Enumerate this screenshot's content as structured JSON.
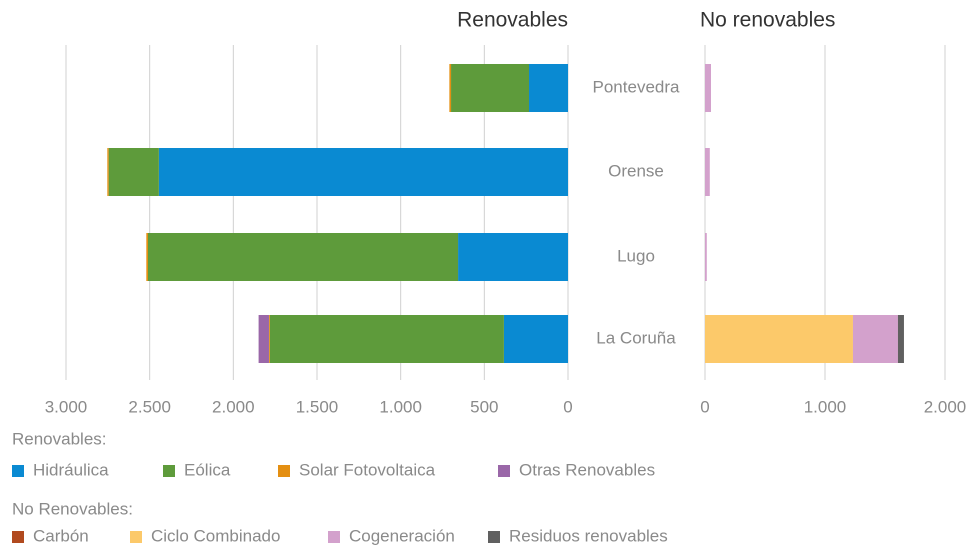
{
  "chart_data": [
    {
      "type": "bar",
      "orientation": "horizontal",
      "stacked": true,
      "reversed": true,
      "title": "Renovables",
      "legend_title": "Renovables:",
      "categories": [
        "Pontevedra",
        "Orense",
        "Lugo",
        "La Coruña"
      ],
      "series": [
        {
          "name": "Hidráulica",
          "color": "#0a8ad2",
          "values": [
            233,
            2445,
            657,
            383
          ]
        },
        {
          "name": "Eólica",
          "color": "#5e9b3b",
          "values": [
            466,
            300,
            1853,
            1399
          ]
        },
        {
          "name": "Solar Fotovoltaica",
          "color": "#e48f12",
          "values": [
            10,
            8,
            10,
            5
          ]
        },
        {
          "name": "Otras Renovables",
          "color": "#9a67a8",
          "values": [
            0,
            0,
            0,
            62
          ]
        }
      ],
      "xlim": [
        0,
        3000
      ],
      "xticks": [
        0,
        500,
        {
          "value": 1000,
          "label": "1.000"
        },
        {
          "value": 1500,
          "label": "1.500"
        },
        {
          "value": 2000,
          "label": "2.000"
        },
        {
          "value": 2500,
          "label": "2.500"
        },
        {
          "value": 3000,
          "label": "3.000"
        }
      ],
      "grid": true
    },
    {
      "type": "bar",
      "orientation": "horizontal",
      "stacked": true,
      "title": "No renovables",
      "legend_title": "No Renovables:",
      "categories": [
        "Pontevedra",
        "Orense",
        "Lugo",
        "La Coruña"
      ],
      "series": [
        {
          "name": "Carbón",
          "color": "#b14a1f",
          "values": [
            0,
            0,
            0,
            0
          ]
        },
        {
          "name": "Ciclo Combinado",
          "color": "#fcc96a",
          "values": [
            0,
            0,
            0,
            1233
          ]
        },
        {
          "name": "Cogeneración",
          "color": "#d3a1cc",
          "values": [
            50,
            40,
            15,
            375
          ]
        },
        {
          "name": "Residuos renovables",
          "color": "#606060",
          "values": [
            0,
            0,
            0,
            50
          ]
        }
      ],
      "xlim": [
        0,
        2000
      ],
      "xticks": [
        0,
        {
          "value": 1000,
          "label": "1.000"
        },
        {
          "value": 2000,
          "label": "2.000"
        }
      ],
      "grid": true
    }
  ]
}
